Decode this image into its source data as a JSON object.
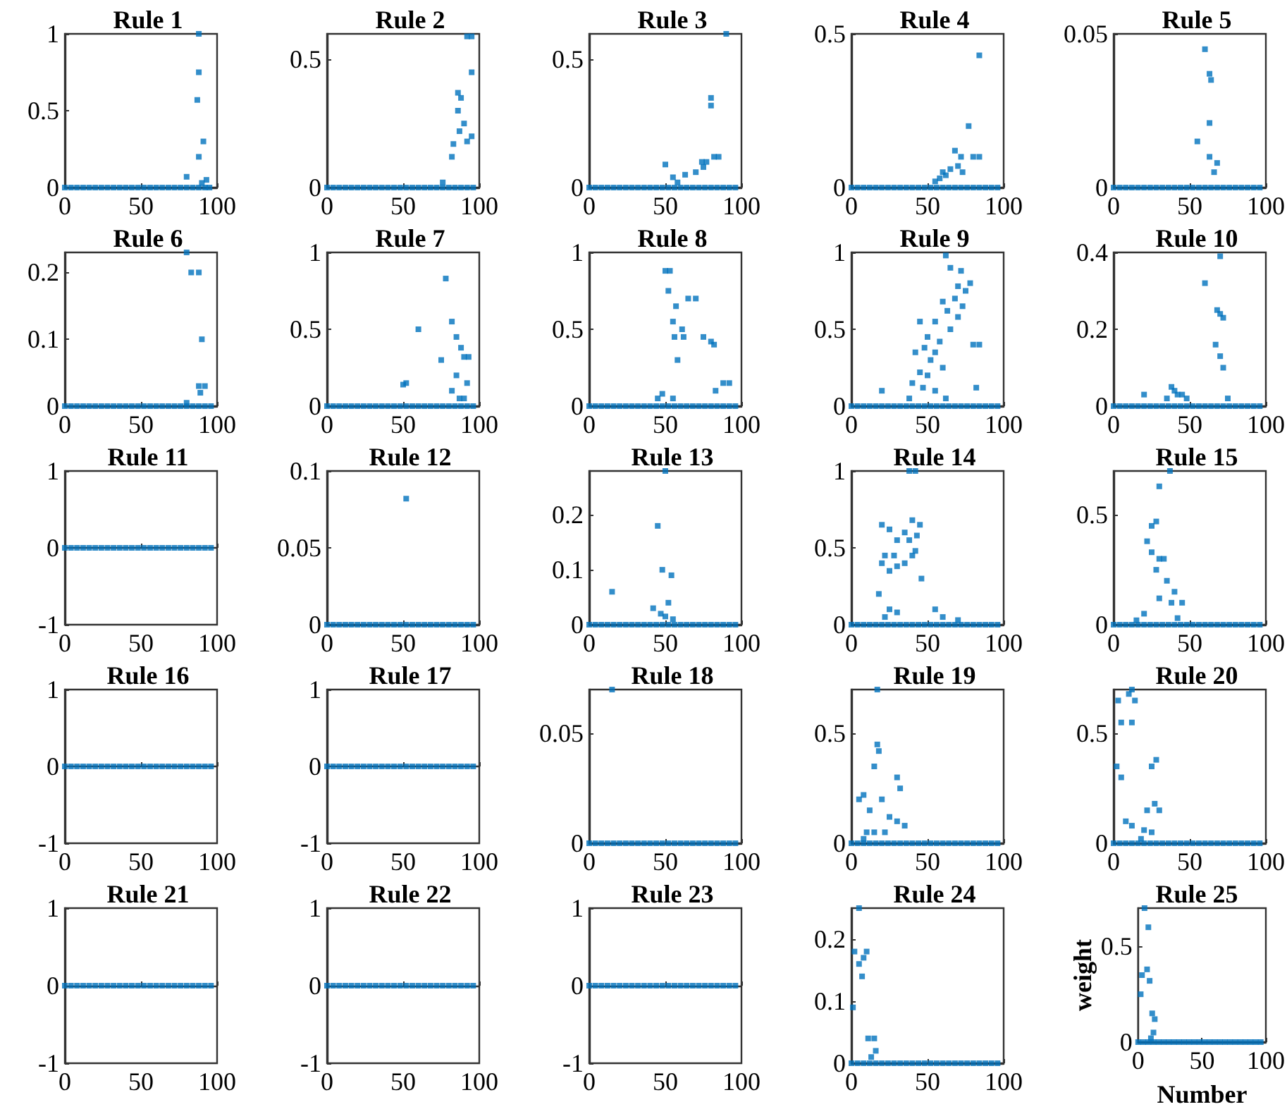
{
  "chart_data": [
    {
      "type": "scatter",
      "title": "Rule 1",
      "marker": "square",
      "color": "#0072bd",
      "xlim": [
        0,
        100
      ],
      "xticks": [
        0,
        50,
        100
      ],
      "ylim": [
        0,
        1
      ],
      "yticks": [
        0,
        0.5,
        1
      ],
      "x": [
        0,
        4,
        8,
        12,
        16,
        20,
        24,
        28,
        32,
        36,
        40,
        44,
        48,
        52,
        56,
        60,
        64,
        68,
        72,
        76,
        80,
        84,
        88,
        92,
        95,
        88,
        88,
        87,
        91,
        88,
        80,
        93,
        90
      ],
      "values": [
        0,
        0,
        0,
        0,
        0,
        0,
        0,
        0,
        0,
        0,
        0,
        0,
        0,
        0,
        0,
        0,
        0,
        0,
        0,
        0,
        0,
        0,
        0,
        0,
        0,
        1,
        0.75,
        0.57,
        0.3,
        0.2,
        0.07,
        0.05,
        0.03
      ]
    },
    {
      "type": "scatter",
      "title": "Rule 2",
      "marker": "square",
      "color": "#0072bd",
      "xlim": [
        0,
        100
      ],
      "xticks": [
        0,
        50,
        100
      ],
      "ylim": [
        0,
        0.6
      ],
      "yticks": [
        0,
        0.5
      ],
      "x": [
        0,
        4,
        8,
        12,
        16,
        20,
        24,
        28,
        32,
        36,
        40,
        44,
        48,
        52,
        56,
        60,
        64,
        68,
        72,
        76,
        80,
        84,
        88,
        92,
        96,
        92,
        95,
        95,
        86,
        88,
        86,
        90,
        87,
        95,
        92,
        83,
        82,
        76
      ],
      "values": [
        0,
        0,
        0,
        0,
        0,
        0,
        0,
        0,
        0,
        0,
        0,
        0,
        0,
        0,
        0,
        0,
        0,
        0,
        0,
        0,
        0,
        0,
        0,
        0,
        0,
        0.59,
        0.59,
        0.45,
        0.37,
        0.35,
        0.3,
        0.25,
        0.22,
        0.2,
        0.18,
        0.17,
        0.12,
        0.02
      ]
    },
    {
      "type": "scatter",
      "title": "Rule 3",
      "marker": "square",
      "color": "#0072bd",
      "xlim": [
        0,
        100
      ],
      "xticks": [
        0,
        50,
        100
      ],
      "ylim": [
        0,
        0.6
      ],
      "yticks": [
        0,
        0.5
      ],
      "x": [
        0,
        4,
        8,
        12,
        16,
        20,
        24,
        28,
        32,
        36,
        40,
        44,
        48,
        52,
        56,
        60,
        64,
        68,
        72,
        76,
        80,
        84,
        88,
        92,
        96,
        90,
        80,
        80,
        50,
        63,
        55,
        74,
        77,
        82,
        85,
        70,
        75,
        58
      ],
      "values": [
        0,
        0,
        0,
        0,
        0,
        0,
        0,
        0,
        0,
        0,
        0,
        0,
        0,
        0,
        0,
        0,
        0,
        0,
        0,
        0,
        0,
        0,
        0,
        0,
        0,
        0.6,
        0.35,
        0.32,
        0.09,
        0.05,
        0.04,
        0.1,
        0.1,
        0.12,
        0.12,
        0.06,
        0.08,
        0.02
      ]
    },
    {
      "type": "scatter",
      "title": "Rule 4",
      "marker": "square",
      "color": "#0072bd",
      "xlim": [
        0,
        100
      ],
      "xticks": [
        0,
        50,
        100
      ],
      "ylim": [
        0,
        0.5
      ],
      "yticks": [
        0,
        0.5
      ],
      "x": [
        0,
        4,
        8,
        12,
        16,
        20,
        24,
        28,
        32,
        36,
        40,
        44,
        48,
        52,
        56,
        60,
        64,
        68,
        72,
        76,
        80,
        84,
        88,
        92,
        96,
        84,
        77,
        68,
        72,
        80,
        84,
        60,
        65,
        70,
        58,
        55,
        62,
        73
      ],
      "values": [
        0,
        0,
        0,
        0,
        0,
        0,
        0,
        0,
        0,
        0,
        0,
        0,
        0,
        0,
        0,
        0,
        0,
        0,
        0,
        0,
        0,
        0,
        0,
        0,
        0,
        0.43,
        0.2,
        0.12,
        0.1,
        0.1,
        0.1,
        0.05,
        0.06,
        0.07,
        0.03,
        0.02,
        0.04,
        0.05
      ]
    },
    {
      "type": "scatter",
      "title": "Rule 5",
      "marker": "square",
      "color": "#0072bd",
      "xlim": [
        0,
        100
      ],
      "xticks": [
        0,
        50,
        100
      ],
      "ylim": [
        0,
        0.05
      ],
      "yticks": [
        0,
        0.05
      ],
      "x": [
        0,
        4,
        8,
        12,
        16,
        20,
        24,
        28,
        32,
        36,
        40,
        44,
        48,
        52,
        56,
        60,
        64,
        68,
        72,
        76,
        80,
        84,
        88,
        92,
        96,
        60,
        63,
        64,
        63,
        55,
        63,
        68,
        66
      ],
      "values": [
        0,
        0,
        0,
        0,
        0,
        0,
        0,
        0,
        0,
        0,
        0,
        0,
        0,
        0,
        0,
        0,
        0,
        0,
        0,
        0,
        0,
        0,
        0,
        0,
        0,
        0.045,
        0.037,
        0.035,
        0.021,
        0.015,
        0.01,
        0.008,
        0.005
      ]
    },
    {
      "type": "scatter",
      "title": "Rule 6",
      "marker": "square",
      "color": "#0072bd",
      "xlim": [
        0,
        100
      ],
      "xticks": [
        0,
        50,
        100
      ],
      "ylim": [
        0,
        0.23
      ],
      "yticks": [
        0,
        0.1,
        0.2
      ],
      "x": [
        0,
        4,
        8,
        12,
        16,
        20,
        24,
        28,
        32,
        36,
        40,
        44,
        48,
        52,
        56,
        60,
        64,
        68,
        72,
        76,
        80,
        84,
        88,
        92,
        96,
        80,
        83,
        88,
        90,
        88,
        92,
        89,
        80
      ],
      "values": [
        0,
        0,
        0,
        0,
        0,
        0,
        0,
        0,
        0,
        0,
        0,
        0,
        0,
        0,
        0,
        0,
        0,
        0,
        0,
        0,
        0,
        0,
        0,
        0,
        0,
        0.23,
        0.2,
        0.2,
        0.1,
        0.03,
        0.03,
        0.02,
        0.005
      ]
    },
    {
      "type": "scatter",
      "title": "Rule 7",
      "marker": "square",
      "color": "#0072bd",
      "xlim": [
        0,
        100
      ],
      "xticks": [
        0,
        50,
        100
      ],
      "ylim": [
        0,
        1
      ],
      "yticks": [
        0,
        0.5,
        1
      ],
      "x": [
        0,
        4,
        8,
        12,
        16,
        20,
        24,
        28,
        32,
        36,
        40,
        44,
        48,
        52,
        56,
        60,
        64,
        68,
        72,
        76,
        80,
        84,
        88,
        92,
        96,
        78,
        82,
        85,
        88,
        90,
        93,
        60,
        75,
        85,
        52,
        50,
        82,
        92,
        87,
        90
      ],
      "values": [
        0,
        0,
        0,
        0,
        0,
        0,
        0,
        0,
        0,
        0,
        0,
        0,
        0,
        0,
        0,
        0,
        0,
        0,
        0,
        0,
        0,
        0,
        0,
        0,
        0,
        0.83,
        0.55,
        0.45,
        0.38,
        0.32,
        0.32,
        0.5,
        0.3,
        0.2,
        0.15,
        0.14,
        0.1,
        0.15,
        0.05,
        0.05
      ]
    },
    {
      "type": "scatter",
      "title": "Rule 8",
      "marker": "square",
      "color": "#0072bd",
      "xlim": [
        0,
        100
      ],
      "xticks": [
        0,
        50,
        100
      ],
      "ylim": [
        0,
        1
      ],
      "yticks": [
        0,
        0.5,
        1
      ],
      "x": [
        0,
        4,
        8,
        12,
        16,
        20,
        24,
        28,
        32,
        36,
        40,
        44,
        48,
        52,
        56,
        60,
        64,
        68,
        72,
        76,
        80,
        84,
        88,
        92,
        96,
        50,
        53,
        52,
        57,
        65,
        55,
        61,
        56,
        62,
        58,
        75,
        80,
        70,
        82,
        45,
        48,
        55,
        83,
        88,
        92
      ],
      "values": [
        0,
        0,
        0,
        0,
        0,
        0,
        0,
        0,
        0,
        0,
        0,
        0,
        0,
        0,
        0,
        0,
        0,
        0,
        0,
        0,
        0,
        0,
        0,
        0,
        0,
        0.88,
        0.88,
        0.75,
        0.65,
        0.7,
        0.55,
        0.5,
        0.45,
        0.45,
        0.3,
        0.45,
        0.42,
        0.7,
        0.4,
        0.05,
        0.08,
        0.05,
        0.1,
        0.15,
        0.15
      ]
    },
    {
      "type": "scatter",
      "title": "Rule 9",
      "marker": "square",
      "color": "#0072bd",
      "xlim": [
        0,
        100
      ],
      "xticks": [
        0,
        50,
        100
      ],
      "ylim": [
        0,
        1
      ],
      "yticks": [
        0,
        0.5,
        1
      ],
      "x": [
        0,
        4,
        8,
        12,
        16,
        20,
        24,
        28,
        32,
        36,
        40,
        44,
        48,
        52,
        56,
        60,
        64,
        68,
        72,
        76,
        80,
        84,
        88,
        92,
        96,
        62,
        65,
        72,
        70,
        75,
        78,
        68,
        73,
        60,
        63,
        70,
        55,
        45,
        50,
        58,
        65,
        48,
        42,
        52,
        55,
        80,
        84,
        60,
        45,
        50,
        40,
        47,
        55,
        20,
        62,
        82,
        38
      ],
      "values": [
        0,
        0,
        0,
        0,
        0,
        0,
        0,
        0,
        0,
        0,
        0,
        0,
        0,
        0,
        0,
        0,
        0,
        0,
        0,
        0,
        0,
        0,
        0,
        0,
        0,
        0.98,
        0.9,
        0.88,
        0.78,
        0.75,
        0.8,
        0.7,
        0.65,
        0.68,
        0.62,
        0.58,
        0.55,
        0.55,
        0.45,
        0.42,
        0.5,
        0.38,
        0.35,
        0.3,
        0.35,
        0.4,
        0.4,
        0.25,
        0.22,
        0.2,
        0.15,
        0.12,
        0.1,
        0.1,
        0.05,
        0.12,
        0.05
      ]
    },
    {
      "type": "scatter",
      "title": "Rule 10",
      "marker": "square",
      "color": "#0072bd",
      "xlim": [
        0,
        100
      ],
      "xticks": [
        0,
        50,
        100
      ],
      "ylim": [
        0,
        0.4
      ],
      "yticks": [
        0,
        0.2,
        0.4
      ],
      "x": [
        0,
        4,
        8,
        12,
        16,
        20,
        24,
        28,
        32,
        36,
        40,
        44,
        48,
        52,
        56,
        60,
        64,
        68,
        72,
        76,
        80,
        84,
        88,
        92,
        96,
        70,
        60,
        68,
        70,
        72,
        67,
        70,
        72,
        20,
        38,
        40,
        42,
        45,
        48,
        75,
        35
      ],
      "values": [
        0,
        0,
        0,
        0,
        0,
        0,
        0,
        0,
        0,
        0,
        0,
        0,
        0,
        0,
        0,
        0,
        0,
        0,
        0,
        0,
        0,
        0,
        0,
        0,
        0,
        0.39,
        0.32,
        0.25,
        0.24,
        0.23,
        0.16,
        0.13,
        0.1,
        0.03,
        0.05,
        0.04,
        0.03,
        0.03,
        0.02,
        0.02,
        0.02
      ]
    },
    {
      "type": "scatter",
      "title": "Rule 11",
      "marker": "square",
      "color": "#0072bd",
      "xlim": [
        0,
        100
      ],
      "xticks": [
        0,
        50,
        100
      ],
      "ylim": [
        -1,
        1
      ],
      "yticks": [
        -1,
        0,
        1
      ],
      "x": [
        0,
        4,
        8,
        12,
        16,
        20,
        24,
        28,
        32,
        36,
        40,
        44,
        48,
        52,
        56,
        60,
        64,
        68,
        72,
        76,
        80,
        84,
        88,
        92,
        96
      ],
      "values": [
        0,
        0,
        0,
        0,
        0,
        0,
        0,
        0,
        0,
        0,
        0,
        0,
        0,
        0,
        0,
        0,
        0,
        0,
        0,
        0,
        0,
        0,
        0,
        0,
        0
      ]
    },
    {
      "type": "scatter",
      "title": "Rule 12",
      "marker": "square",
      "color": "#0072bd",
      "xlim": [
        0,
        100
      ],
      "xticks": [
        0,
        50,
        100
      ],
      "ylim": [
        0,
        0.1
      ],
      "yticks": [
        0,
        0.05,
        0.1
      ],
      "x": [
        0,
        4,
        8,
        12,
        16,
        20,
        24,
        28,
        32,
        36,
        40,
        44,
        48,
        52,
        56,
        60,
        64,
        68,
        72,
        76,
        80,
        84,
        88,
        92,
        96,
        52
      ],
      "values": [
        0,
        0,
        0,
        0,
        0,
        0,
        0,
        0,
        0,
        0,
        0,
        0,
        0,
        0,
        0,
        0,
        0,
        0,
        0,
        0,
        0,
        0,
        0,
        0,
        0,
        0.082
      ]
    },
    {
      "type": "scatter",
      "title": "Rule 13",
      "marker": "square",
      "color": "#0072bd",
      "xlim": [
        0,
        100
      ],
      "xticks": [
        0,
        50,
        100
      ],
      "ylim": [
        0,
        0.28
      ],
      "yticks": [
        0,
        0.1,
        0.2
      ],
      "x": [
        0,
        4,
        8,
        12,
        16,
        20,
        24,
        28,
        32,
        36,
        40,
        44,
        48,
        52,
        56,
        60,
        64,
        68,
        72,
        76,
        80,
        84,
        88,
        92,
        96,
        50,
        45,
        48,
        54,
        15,
        42,
        47,
        52,
        55,
        50
      ],
      "values": [
        0,
        0,
        0,
        0,
        0,
        0,
        0,
        0,
        0,
        0,
        0,
        0,
        0,
        0,
        0,
        0,
        0,
        0,
        0,
        0,
        0,
        0,
        0,
        0,
        0,
        0.28,
        0.18,
        0.1,
        0.09,
        0.06,
        0.03,
        0.02,
        0.04,
        0.01,
        0.015
      ]
    },
    {
      "type": "scatter",
      "title": "Rule 14",
      "marker": "square",
      "color": "#0072bd",
      "xlim": [
        0,
        100
      ],
      "xticks": [
        0,
        50,
        100
      ],
      "ylim": [
        0,
        1
      ],
      "yticks": [
        0,
        0.5,
        1
      ],
      "x": [
        0,
        4,
        8,
        12,
        16,
        20,
        24,
        28,
        32,
        36,
        40,
        44,
        48,
        52,
        56,
        60,
        64,
        68,
        72,
        76,
        80,
        84,
        88,
        92,
        96,
        38,
        42,
        40,
        45,
        20,
        25,
        35,
        30,
        43,
        38,
        42,
        28,
        22,
        20,
        30,
        35,
        40,
        25,
        46,
        18,
        25,
        30,
        22,
        55,
        60,
        70
      ],
      "values": [
        0,
        0,
        0,
        0,
        0,
        0,
        0,
        0,
        0,
        0,
        0,
        0,
        0,
        0,
        0,
        0,
        0,
        0,
        0,
        0,
        0,
        0,
        0,
        0,
        0,
        1,
        1,
        0.68,
        0.65,
        0.65,
        0.62,
        0.6,
        0.55,
        0.58,
        0.55,
        0.48,
        0.45,
        0.45,
        0.4,
        0.38,
        0.4,
        0.45,
        0.35,
        0.3,
        0.2,
        0.1,
        0.08,
        0.05,
        0.1,
        0.05,
        0.03
      ]
    },
    {
      "type": "scatter",
      "title": "Rule 15",
      "marker": "square",
      "color": "#0072bd",
      "xlim": [
        0,
        100
      ],
      "xticks": [
        0,
        50,
        100
      ],
      "ylim": [
        0,
        0.7
      ],
      "yticks": [
        0,
        0.5
      ],
      "x": [
        0,
        4,
        8,
        12,
        16,
        20,
        24,
        28,
        32,
        36,
        40,
        44,
        48,
        52,
        56,
        60,
        64,
        68,
        72,
        76,
        80,
        84,
        88,
        92,
        96,
        37,
        30,
        25,
        28,
        22,
        25,
        30,
        33,
        28,
        35,
        40,
        30,
        38,
        45,
        20,
        42,
        15
      ],
      "values": [
        0,
        0,
        0,
        0,
        0,
        0,
        0,
        0,
        0,
        0,
        0,
        0,
        0,
        0,
        0,
        0,
        0,
        0,
        0,
        0,
        0,
        0,
        0,
        0,
        0,
        0.7,
        0.63,
        0.45,
        0.47,
        0.38,
        0.33,
        0.3,
        0.3,
        0.25,
        0.2,
        0.15,
        0.12,
        0.1,
        0.1,
        0.05,
        0.03,
        0.02
      ]
    },
    {
      "type": "scatter",
      "title": "Rule 16",
      "marker": "square",
      "color": "#0072bd",
      "xlim": [
        0,
        100
      ],
      "xticks": [
        0,
        50,
        100
      ],
      "ylim": [
        -1,
        1
      ],
      "yticks": [
        -1,
        0,
        1
      ],
      "x": [
        0,
        4,
        8,
        12,
        16,
        20,
        24,
        28,
        32,
        36,
        40,
        44,
        48,
        52,
        56,
        60,
        64,
        68,
        72,
        76,
        80,
        84,
        88,
        92,
        96
      ],
      "values": [
        0,
        0,
        0,
        0,
        0,
        0,
        0,
        0,
        0,
        0,
        0,
        0,
        0,
        0,
        0,
        0,
        0,
        0,
        0,
        0,
        0,
        0,
        0,
        0,
        0
      ]
    },
    {
      "type": "scatter",
      "title": "Rule 17",
      "marker": "square",
      "color": "#0072bd",
      "xlim": [
        0,
        100
      ],
      "xticks": [
        0,
        50,
        100
      ],
      "ylim": [
        -1,
        1
      ],
      "yticks": [
        -1,
        0,
        1
      ],
      "x": [
        0,
        4,
        8,
        12,
        16,
        20,
        24,
        28,
        32,
        36,
        40,
        44,
        48,
        52,
        56,
        60,
        64,
        68,
        72,
        76,
        80,
        84,
        88,
        92,
        96
      ],
      "values": [
        0,
        0,
        0,
        0,
        0,
        0,
        0,
        0,
        0,
        0,
        0,
        0,
        0,
        0,
        0,
        0,
        0,
        0,
        0,
        0,
        0,
        0,
        0,
        0,
        0
      ]
    },
    {
      "type": "scatter",
      "title": "Rule 18",
      "marker": "square",
      "color": "#0072bd",
      "xlim": [
        0,
        100
      ],
      "xticks": [
        0,
        50,
        100
      ],
      "ylim": [
        0,
        0.07
      ],
      "yticks": [
        0,
        0.05
      ],
      "x": [
        0,
        4,
        8,
        12,
        16,
        20,
        24,
        28,
        32,
        36,
        40,
        44,
        48,
        52,
        56,
        60,
        64,
        68,
        72,
        76,
        80,
        84,
        88,
        92,
        96,
        15
      ],
      "values": [
        0,
        0,
        0,
        0,
        0,
        0,
        0,
        0,
        0,
        0,
        0,
        0,
        0,
        0,
        0,
        0,
        0,
        0,
        0,
        0,
        0,
        0,
        0,
        0,
        0,
        0.07
      ]
    },
    {
      "type": "scatter",
      "title": "Rule 19",
      "marker": "square",
      "color": "#0072bd",
      "xlim": [
        0,
        100
      ],
      "xticks": [
        0,
        50,
        100
      ],
      "ylim": [
        0,
        0.7
      ],
      "yticks": [
        0,
        0.5
      ],
      "x": [
        0,
        4,
        8,
        12,
        16,
        20,
        24,
        28,
        32,
        36,
        40,
        44,
        48,
        52,
        56,
        60,
        64,
        68,
        72,
        76,
        80,
        84,
        88,
        92,
        96,
        17,
        17,
        18,
        15,
        5,
        8,
        30,
        32,
        20,
        12,
        25,
        30,
        35,
        15,
        22,
        10,
        8
      ],
      "values": [
        0,
        0,
        0,
        0,
        0,
        0,
        0,
        0,
        0,
        0,
        0,
        0,
        0,
        0,
        0,
        0,
        0,
        0,
        0,
        0,
        0,
        0,
        0,
        0,
        0,
        0.7,
        0.45,
        0.42,
        0.35,
        0.2,
        0.22,
        0.3,
        0.25,
        0.2,
        0.15,
        0.12,
        0.1,
        0.08,
        0.05,
        0.05,
        0.05,
        0.02
      ]
    },
    {
      "type": "scatter",
      "title": "Rule 20",
      "marker": "square",
      "color": "#0072bd",
      "xlim": [
        0,
        100
      ],
      "xticks": [
        0,
        50,
        100
      ],
      "ylim": [
        0,
        0.7
      ],
      "yticks": [
        0,
        0.5
      ],
      "x": [
        0,
        4,
        8,
        12,
        16,
        20,
        24,
        28,
        32,
        36,
        40,
        44,
        48,
        52,
        56,
        60,
        64,
        68,
        72,
        76,
        80,
        84,
        88,
        92,
        96,
        12,
        10,
        14,
        3,
        5,
        12,
        2,
        5,
        28,
        25,
        22,
        27,
        30,
        8,
        12,
        20,
        25,
        18
      ],
      "values": [
        0,
        0,
        0,
        0,
        0,
        0,
        0,
        0,
        0,
        0,
        0,
        0,
        0,
        0,
        0,
        0,
        0,
        0,
        0,
        0,
        0,
        0,
        0,
        0,
        0,
        0.7,
        0.68,
        0.65,
        0.65,
        0.55,
        0.55,
        0.35,
        0.3,
        0.38,
        0.35,
        0.15,
        0.18,
        0.15,
        0.1,
        0.08,
        0.06,
        0.05,
        0.02
      ]
    },
    {
      "type": "scatter",
      "title": "Rule 21",
      "marker": "square",
      "color": "#0072bd",
      "xlim": [
        0,
        100
      ],
      "xticks": [
        0,
        50,
        100
      ],
      "ylim": [
        -1,
        1
      ],
      "yticks": [
        -1,
        0,
        1
      ],
      "x": [
        0,
        4,
        8,
        12,
        16,
        20,
        24,
        28,
        32,
        36,
        40,
        44,
        48,
        52,
        56,
        60,
        64,
        68,
        72,
        76,
        80,
        84,
        88,
        92,
        96
      ],
      "values": [
        0,
        0,
        0,
        0,
        0,
        0,
        0,
        0,
        0,
        0,
        0,
        0,
        0,
        0,
        0,
        0,
        0,
        0,
        0,
        0,
        0,
        0,
        0,
        0,
        0
      ]
    },
    {
      "type": "scatter",
      "title": "Rule 22",
      "marker": "square",
      "color": "#0072bd",
      "xlim": [
        0,
        100
      ],
      "xticks": [
        0,
        50,
        100
      ],
      "ylim": [
        -1,
        1
      ],
      "yticks": [
        -1,
        0,
        1
      ],
      "x": [
        0,
        4,
        8,
        12,
        16,
        20,
        24,
        28,
        32,
        36,
        40,
        44,
        48,
        52,
        56,
        60,
        64,
        68,
        72,
        76,
        80,
        84,
        88,
        92,
        96
      ],
      "values": [
        0,
        0,
        0,
        0,
        0,
        0,
        0,
        0,
        0,
        0,
        0,
        0,
        0,
        0,
        0,
        0,
        0,
        0,
        0,
        0,
        0,
        0,
        0,
        0,
        0
      ]
    },
    {
      "type": "scatter",
      "title": "Rule 23",
      "marker": "square",
      "color": "#0072bd",
      "xlim": [
        0,
        100
      ],
      "xticks": [
        0,
        50,
        100
      ],
      "ylim": [
        -1,
        1
      ],
      "yticks": [
        -1,
        0,
        1
      ],
      "x": [
        0,
        4,
        8,
        12,
        16,
        20,
        24,
        28,
        32,
        36,
        40,
        44,
        48,
        52,
        56,
        60,
        64,
        68,
        72,
        76,
        80,
        84,
        88,
        92,
        96
      ],
      "values": [
        0,
        0,
        0,
        0,
        0,
        0,
        0,
        0,
        0,
        0,
        0,
        0,
        0,
        0,
        0,
        0,
        0,
        0,
        0,
        0,
        0,
        0,
        0,
        0,
        0
      ]
    },
    {
      "type": "scatter",
      "title": "Rule 24",
      "marker": "square",
      "color": "#0072bd",
      "xlim": [
        0,
        100
      ],
      "xticks": [
        0,
        50,
        100
      ],
      "ylim": [
        0,
        0.25
      ],
      "yticks": [
        0,
        0.1,
        0.2
      ],
      "x": [
        0,
        4,
        8,
        12,
        16,
        20,
        24,
        28,
        32,
        36,
        40,
        44,
        48,
        52,
        56,
        60,
        64,
        68,
        72,
        76,
        80,
        84,
        88,
        92,
        96,
        5,
        2,
        5,
        8,
        10,
        7,
        1,
        11,
        15,
        16,
        13
      ],
      "values": [
        0,
        0,
        0,
        0,
        0,
        0,
        0,
        0,
        0,
        0,
        0,
        0,
        0,
        0,
        0,
        0,
        0,
        0,
        0,
        0,
        0,
        0,
        0,
        0,
        0,
        0.25,
        0.18,
        0.16,
        0.17,
        0.18,
        0.14,
        0.09,
        0.04,
        0.04,
        0.02,
        0.01
      ]
    },
    {
      "type": "scatter",
      "title": "Rule 25",
      "xlabel": "Number",
      "ylabel": "weight",
      "marker": "square",
      "color": "#0072bd",
      "xlim": [
        0,
        100
      ],
      "xticks": [
        0,
        50,
        100
      ],
      "ylim": [
        0,
        0.7
      ],
      "yticks": [
        0,
        0.5
      ],
      "x": [
        0,
        4,
        8,
        12,
        16,
        20,
        24,
        28,
        32,
        36,
        40,
        44,
        48,
        52,
        56,
        60,
        64,
        68,
        72,
        76,
        80,
        84,
        88,
        92,
        96,
        5,
        8,
        3,
        7,
        9,
        2,
        11,
        13,
        12,
        10
      ],
      "values": [
        0,
        0,
        0,
        0,
        0,
        0,
        0,
        0,
        0,
        0,
        0,
        0,
        0,
        0,
        0,
        0,
        0,
        0,
        0,
        0,
        0,
        0,
        0,
        0,
        0,
        0.7,
        0.6,
        0.35,
        0.38,
        0.32,
        0.25,
        0.15,
        0.12,
        0.05,
        0.02
      ]
    }
  ]
}
